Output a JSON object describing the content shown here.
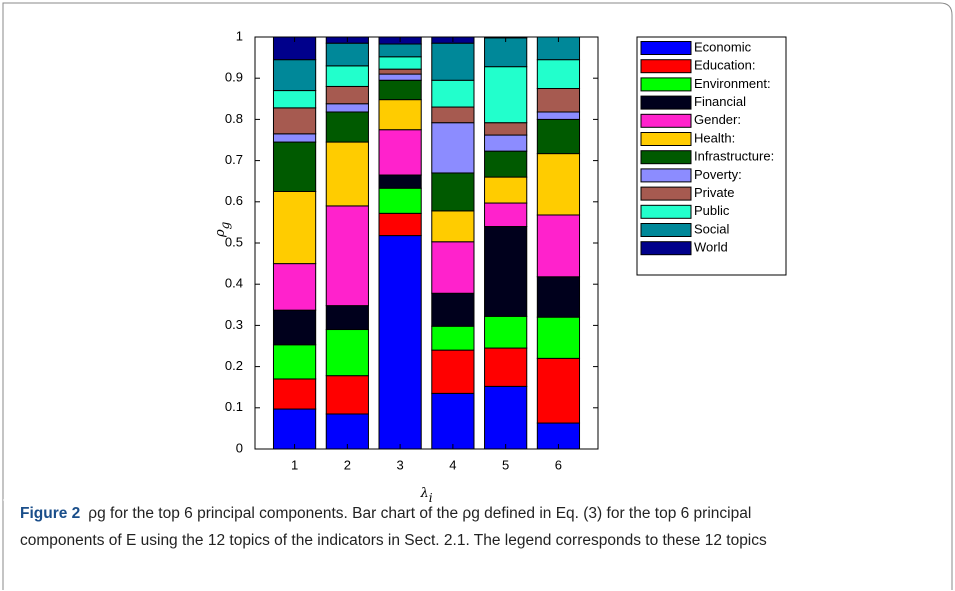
{
  "chart_data": {
    "type": "stacked_bar",
    "ylabel": {
      "base": "ρ",
      "sub": "g"
    },
    "xlabel": {
      "base": "λ",
      "sub": "i"
    },
    "x": [
      1,
      2,
      3,
      4,
      5,
      6
    ],
    "xlim": [
      0.25,
      6.75
    ],
    "xticks": [
      1,
      2,
      3,
      4,
      5,
      6
    ],
    "ylim": [
      0,
      1
    ],
    "yticks": [
      0,
      0.1,
      0.2,
      0.3,
      0.4,
      0.5,
      0.6,
      0.7,
      0.8,
      0.9,
      1
    ],
    "legend": "outside-right",
    "series": [
      {
        "name": "Economic",
        "color": "#0000ff",
        "values": [
          0.097,
          0.085,
          0.518,
          0.135,
          0.152,
          0.063
        ]
      },
      {
        "name": "Education:",
        "color": "#ff0000",
        "values": [
          0.073,
          0.093,
          0.054,
          0.105,
          0.093,
          0.157
        ]
      },
      {
        "name": "Environment:",
        "color": "#00ff00",
        "values": [
          0.083,
          0.112,
          0.061,
          0.058,
          0.077,
          0.1
        ]
      },
      {
        "name": "Financial",
        "color": "#00001c",
        "values": [
          0.084,
          0.058,
          0.032,
          0.08,
          0.218,
          0.098
        ]
      },
      {
        "name": "Gender:",
        "color": "#ff22cc",
        "values": [
          0.113,
          0.242,
          0.11,
          0.125,
          0.057,
          0.15
        ]
      },
      {
        "name": "Health:",
        "color": "#ffcc00",
        "values": [
          0.175,
          0.155,
          0.073,
          0.075,
          0.063,
          0.149
        ]
      },
      {
        "name": "Infrastructure:",
        "color": "#005a00",
        "values": [
          0.12,
          0.073,
          0.047,
          0.092,
          0.063,
          0.083
        ]
      },
      {
        "name": "Poverty:",
        "color": "#8c8cff",
        "values": [
          0.02,
          0.02,
          0.015,
          0.122,
          0.039,
          0.018
        ]
      },
      {
        "name": "Private",
        "color": "#a65a50",
        "values": [
          0.063,
          0.042,
          0.012,
          0.038,
          0.03,
          0.057
        ]
      },
      {
        "name": "Public",
        "color": "#22ffcc",
        "values": [
          0.042,
          0.05,
          0.03,
          0.065,
          0.136,
          0.07
        ]
      },
      {
        "name": "Social",
        "color": "#008899",
        "values": [
          0.075,
          0.055,
          0.031,
          0.09,
          0.07,
          0.055
        ]
      },
      {
        "name": "World",
        "color": "#00008b",
        "values": [
          0.055,
          0.015,
          0.017,
          0.015,
          0.002,
          0
        ]
      }
    ],
    "caption": {
      "label": "Figure 2",
      "lines": [
        "ρg for the top 6 principal components. Bar chart of the ρg defined in Eq. (3) for the top 6 principal",
        "components of E using the 12 topics of the indicators in Sect. 2.1. The legend corresponds to these 12 topics"
      ]
    }
  }
}
